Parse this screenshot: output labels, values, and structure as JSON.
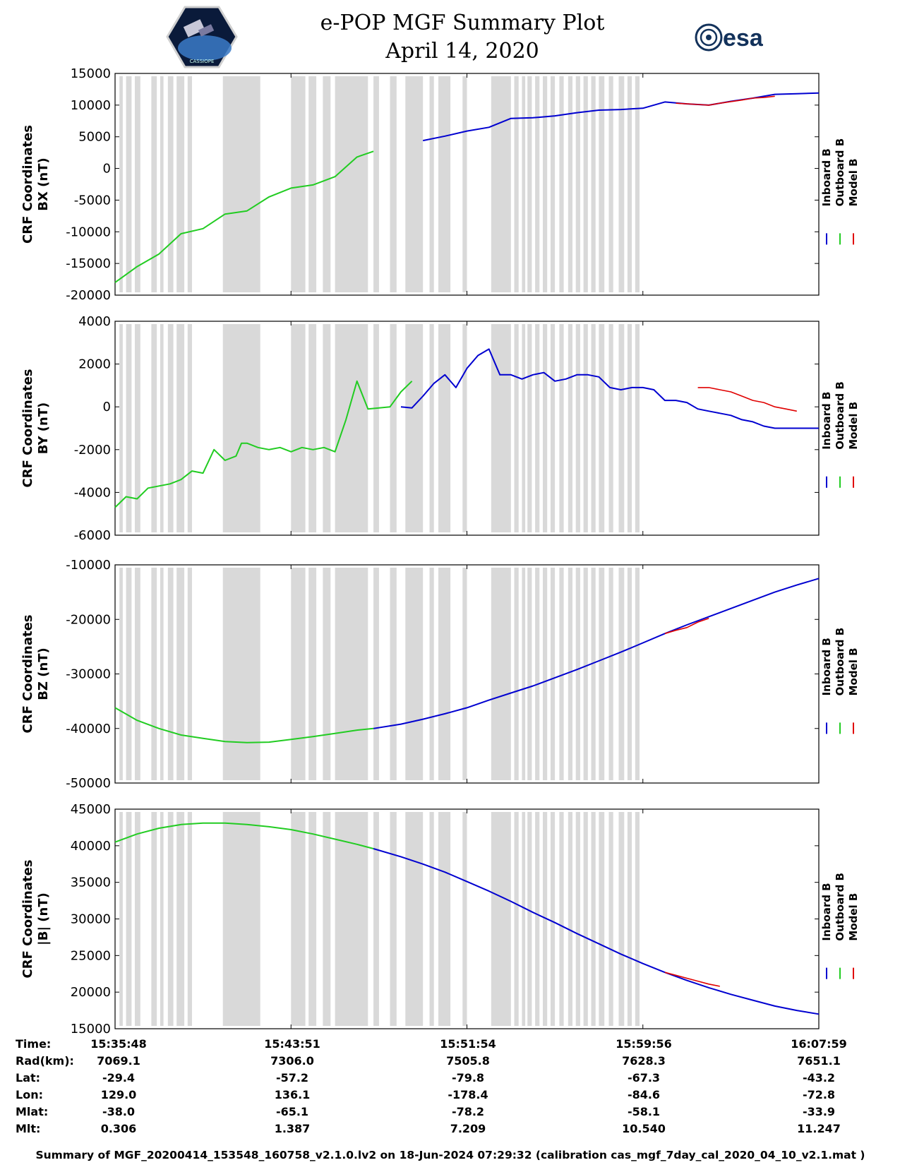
{
  "header": {
    "title_line1": "e-POP MGF Summary Plot",
    "title_line2": "April 14, 2020",
    "left_logo_text": "CASSIOPE",
    "right_logo_text": "esa"
  },
  "colors": {
    "inboard": "#0000d0",
    "outboard": "#22cc22",
    "model": "#e00000",
    "bands": "#d9d9d9"
  },
  "chart_data": [
    {
      "type": "line",
      "ylabel_line1": "CRF Coordinates",
      "ylabel_line2": "BX (nT)",
      "ylim": [
        -20000,
        15000
      ],
      "yticks": [
        15000,
        10000,
        5000,
        0,
        -5000,
        -10000,
        -15000,
        -20000
      ],
      "legend": [
        "Inboard B",
        "Outboard B",
        "Model B"
      ],
      "x_minutes": [
        0,
        2,
        4,
        6,
        8,
        10,
        12,
        14,
        15,
        16,
        18,
        20,
        22,
        23.5,
        24,
        26,
        28,
        30,
        32,
        34,
        36,
        38,
        40,
        42,
        44,
        46,
        48,
        50,
        52,
        54,
        56,
        58,
        60,
        62,
        64
      ],
      "series": [
        {
          "name": "Outboard B",
          "x": [
            0,
            2,
            4,
            6,
            8,
            10,
            12,
            14,
            16,
            18,
            20,
            22,
            23.5
          ],
          "y": [
            -18000,
            -15500,
            -13500,
            -10300,
            -9500,
            -7200,
            -6700,
            -4500,
            -3100,
            -2600,
            -1300,
            1800,
            2700
          ]
        },
        {
          "name": "Inboard B",
          "x": [
            28,
            30,
            32,
            34,
            36,
            38,
            40,
            42,
            44,
            46,
            48,
            50,
            52,
            54,
            56,
            58,
            60,
            62,
            64
          ],
          "y": [
            4400,
            5100,
            5900,
            6500,
            7900,
            8000,
            8300,
            8800,
            9200,
            9300,
            9500,
            10500,
            10200,
            10000,
            10600,
            11100,
            11700,
            11800,
            11900
          ]
        },
        {
          "name": "Model B",
          "x": [
            51,
            52,
            53,
            54,
            55,
            57,
            58,
            59,
            60
          ],
          "y": [
            10300,
            10200,
            10100,
            10000,
            10300,
            10800,
            11100,
            11200,
            11400
          ]
        }
      ]
    },
    {
      "type": "line",
      "ylabel_line1": "CRF Coordinates",
      "ylabel_line2": "BY (nT)",
      "ylim": [
        -6000,
        4000
      ],
      "yticks": [
        4000,
        2000,
        0,
        -2000,
        -4000,
        -6000
      ],
      "legend": [
        "Inboard B",
        "Outboard B",
        "Model B"
      ],
      "series": [
        {
          "name": "Outboard B",
          "x": [
            0,
            1,
            2,
            3,
            4,
            5,
            6,
            7,
            8,
            9,
            10,
            11,
            11.5,
            12,
            13,
            14,
            15,
            16,
            17,
            18,
            19,
            20,
            21,
            22,
            23,
            24,
            25,
            26,
            27
          ],
          "y": [
            -4700,
            -4200,
            -4300,
            -3800,
            -3700,
            -3600,
            -3400,
            -3000,
            -3100,
            -2000,
            -2500,
            -2300,
            -1700,
            -1700,
            -1900,
            -2000,
            -1900,
            -2100,
            -1900,
            -2000,
            -1900,
            -2100,
            -600,
            1200,
            -100,
            -50,
            0,
            700,
            1200
          ]
        },
        {
          "name": "Inboard B",
          "x": [
            26,
            27,
            28,
            29,
            30,
            31,
            32,
            33,
            34,
            35,
            36,
            37,
            38,
            39,
            40,
            41,
            42,
            43,
            44,
            45,
            46,
            47,
            48,
            49,
            50,
            51,
            52,
            53,
            54,
            55,
            56,
            57,
            58,
            59,
            60,
            61,
            62,
            63,
            64
          ],
          "y": [
            0,
            -50,
            500,
            1100,
            1500,
            900,
            1800,
            2400,
            2700,
            1500,
            1500,
            1300,
            1500,
            1600,
            1200,
            1300,
            1500,
            1500,
            1400,
            900,
            800,
            900,
            900,
            800,
            300,
            300,
            200,
            -100,
            -200,
            -300,
            -400,
            -600,
            -700,
            -900,
            -1000,
            -1000,
            -1000,
            -1000,
            -1000
          ]
        },
        {
          "name": "Model B",
          "x": [
            53,
            54,
            55,
            56,
            57,
            58,
            59,
            60,
            61,
            62
          ],
          "y": [
            900,
            900,
            800,
            700,
            500,
            300,
            200,
            0,
            -100,
            -200
          ]
        }
      ]
    },
    {
      "type": "line",
      "ylabel_line1": "CRF Coordinates",
      "ylabel_line2": "BZ (nT)",
      "ylim": [
        -50000,
        -10000
      ],
      "yticks": [
        -10000,
        -20000,
        -30000,
        -40000,
        -50000
      ],
      "legend": [
        "Inboard B",
        "Outboard B",
        "Model B"
      ],
      "series": [
        {
          "name": "Outboard B",
          "x": [
            0,
            2,
            4,
            6,
            8,
            10,
            12,
            14,
            16,
            18,
            20,
            22,
            23.5
          ],
          "y": [
            -36200,
            -38500,
            -40000,
            -41200,
            -41800,
            -42400,
            -42600,
            -42500,
            -42000,
            -41500,
            -40900,
            -40300,
            -40000
          ]
        },
        {
          "name": "Inboard B",
          "x": [
            23.5,
            26,
            28,
            30,
            32,
            34,
            36,
            38,
            40,
            42,
            44,
            46,
            48,
            50,
            52,
            54,
            56,
            58,
            60,
            62,
            64
          ],
          "y": [
            -40000,
            -39200,
            -38300,
            -37300,
            -36200,
            -34800,
            -33500,
            -32200,
            -30700,
            -29200,
            -27600,
            -26000,
            -24300,
            -22600,
            -21000,
            -19500,
            -18000,
            -16500,
            -15000,
            -13700,
            -12500
          ]
        },
        {
          "name": "Model B",
          "x": [
            50,
            51,
            52,
            53,
            54
          ],
          "y": [
            -22600,
            -22000,
            -21500,
            -20500,
            -19800
          ]
        }
      ]
    },
    {
      "type": "line",
      "ylabel_line1": "CRF Coordinates",
      "ylabel_line2": "|B| (nT)",
      "ylim": [
        15000,
        45000
      ],
      "yticks": [
        45000,
        40000,
        35000,
        30000,
        25000,
        20000,
        15000
      ],
      "legend": [
        "Inboard B",
        "Outboard B",
        "Model B"
      ],
      "series": [
        {
          "name": "Outboard B",
          "x": [
            0,
            2,
            4,
            6,
            8,
            10,
            12,
            14,
            16,
            18,
            20,
            22,
            23.5
          ],
          "y": [
            40500,
            41600,
            42400,
            42900,
            43100,
            43100,
            42900,
            42600,
            42200,
            41600,
            40900,
            40200,
            39600
          ]
        },
        {
          "name": "Inboard B",
          "x": [
            23.5,
            26,
            28,
            30,
            32,
            34,
            36,
            38,
            40,
            42,
            44,
            46,
            48,
            50,
            52,
            54,
            56,
            58,
            60,
            62,
            64
          ],
          "y": [
            39600,
            38500,
            37500,
            36400,
            35100,
            33800,
            32400,
            30900,
            29500,
            28000,
            26600,
            25200,
            23900,
            22700,
            21600,
            20600,
            19700,
            18900,
            18100,
            17500,
            17000
          ]
        },
        {
          "name": "Model B",
          "x": [
            50,
            51,
            52,
            53,
            54,
            55
          ],
          "y": [
            22700,
            22300,
            21900,
            21500,
            21100,
            20800
          ]
        }
      ]
    }
  ],
  "data_gaps_minutes": [
    [
      0.4,
      0.7
    ],
    [
      1.0,
      1.5
    ],
    [
      1.8,
      2.3
    ],
    [
      3.3,
      3.8
    ],
    [
      4.1,
      4.4
    ],
    [
      4.8,
      5.3
    ],
    [
      5.6,
      6.3
    ],
    [
      6.6,
      7.0
    ],
    [
      9.8,
      13.2
    ],
    [
      16.0,
      17.3
    ],
    [
      17.6,
      18.3
    ],
    [
      18.9,
      19.6
    ],
    [
      20.0,
      23.0
    ],
    [
      23.5,
      24.0
    ],
    [
      25.0,
      25.6
    ],
    [
      26.4,
      28.0
    ],
    [
      28.6,
      29.0
    ],
    [
      29.4,
      30.5
    ],
    [
      31.6,
      32.0
    ],
    [
      34.2,
      36.0
    ],
    [
      36.3,
      36.7
    ],
    [
      37.0,
      37.3
    ],
    [
      37.5,
      37.9
    ],
    [
      38.2,
      38.6
    ],
    [
      38.9,
      39.3
    ],
    [
      39.6,
      40.0
    ],
    [
      40.4,
      40.8
    ],
    [
      41.2,
      41.6
    ],
    [
      41.9,
      42.3
    ],
    [
      42.6,
      43.0
    ],
    [
      43.3,
      43.7
    ],
    [
      44.0,
      44.5
    ],
    [
      44.9,
      45.3
    ],
    [
      45.8,
      46.3
    ],
    [
      46.6,
      47.0
    ],
    [
      47.3,
      47.7
    ]
  ],
  "time_axis": {
    "ticks": [
      "15:35:48",
      "15:43:51",
      "15:51:54",
      "15:59:56",
      "16:07:59"
    ],
    "row_labels": [
      "Time:",
      "Rad(km):",
      "Lat:",
      "Lon:",
      "Mlat:",
      "Mlt:"
    ],
    "columns": [
      [
        "15:35:48",
        "7069.1",
        "-29.4",
        "129.0",
        "-38.0",
        "0.306"
      ],
      [
        "15:43:51",
        "7306.0",
        "-57.2",
        "136.1",
        "-65.1",
        "1.387"
      ],
      [
        "15:51:54",
        "7505.8",
        "-79.8",
        "-178.4",
        "-78.2",
        "7.209"
      ],
      [
        "15:59:56",
        "7628.3",
        "-67.3",
        "-84.6",
        "-58.1",
        "10.540"
      ],
      [
        "16:07:59",
        "7651.1",
        "-43.2",
        "-72.8",
        "-33.9",
        "11.247"
      ]
    ]
  },
  "footer": "Summary of MGF_20200414_153548_160758_v2.1.0.lv2 on 18-Jun-2024 07:29:32 (calibration cas_mgf_7day_cal_2020_04_10_v2.1.mat )"
}
